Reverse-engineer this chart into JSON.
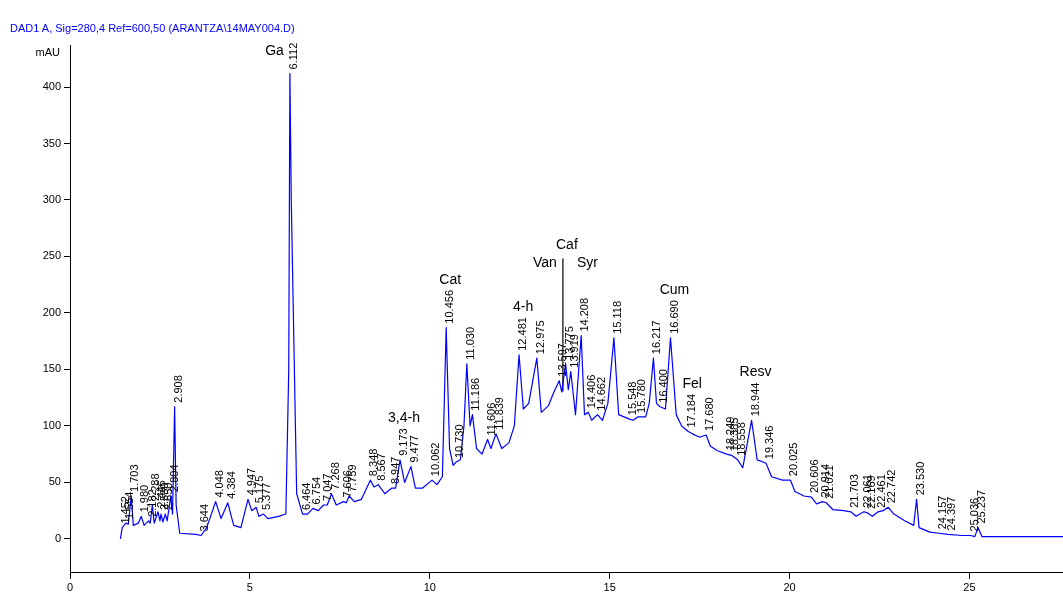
{
  "chart_data": {
    "type": "line",
    "title": "DAD1 A, Sig=280,4 Ref=600,50 (ARANTZA\\14MAY004.D)",
    "ylabel": "mAU",
    "xlim": [
      0,
      27.6
    ],
    "xticks": [
      0,
      5,
      10,
      15,
      20,
      25
    ],
    "ylim": [
      -30,
      437
    ],
    "yticks": [
      0,
      50,
      100,
      150,
      200,
      250,
      300,
      350,
      400
    ],
    "grid": false,
    "legend": false,
    "marker": "none",
    "line_style": "solid",
    "annotations": [
      {
        "text": "1.452",
        "x": 1.452,
        "y": 10
      },
      {
        "text": "1.554",
        "x": 1.554,
        "y": 14
      },
      {
        "text": "1.703",
        "x": 1.703,
        "y": 38
      },
      {
        "text": "1.980",
        "x": 1.98,
        "y": 20
      },
      {
        "text": "2.182",
        "x": 2.182,
        "y": 16
      },
      {
        "text": "2.288",
        "x": 2.288,
        "y": 30
      },
      {
        "text": "2.446",
        "x": 2.446,
        "y": 24
      },
      {
        "text": "2.530",
        "x": 2.53,
        "y": 22
      },
      {
        "text": "2.650",
        "x": 2.65,
        "y": 22
      },
      {
        "text": "2.804",
        "x": 2.804,
        "y": 38
      },
      {
        "text": "2.908",
        "x": 2.908,
        "y": 117
      },
      {
        "text": "3.644",
        "x": 3.644,
        "y": 3
      },
      {
        "text": "4.048",
        "x": 4.048,
        "y": 33
      },
      {
        "text": "4.384",
        "x": 4.384,
        "y": 32
      },
      {
        "text": "4.947",
        "x": 4.947,
        "y": 35
      },
      {
        "text": "5.175",
        "x": 5.175,
        "y": 28
      },
      {
        "text": "5.377",
        "x": 5.377,
        "y": 22
      },
      {
        "text": "6.112",
        "x": 6.112,
        "y": 412
      },
      {
        "text": "6.464",
        "x": 6.464,
        "y": 22
      },
      {
        "text": "6.754",
        "x": 6.754,
        "y": 27
      },
      {
        "text": "7.047",
        "x": 7.047,
        "y": 30
      },
      {
        "text": "7.268",
        "x": 7.268,
        "y": 40
      },
      {
        "text": "7.606",
        "x": 7.606,
        "y": 33
      },
      {
        "text": "7.759",
        "x": 7.759,
        "y": 38
      },
      {
        "text": "8.348",
        "x": 8.348,
        "y": 52
      },
      {
        "text": "8.567",
        "x": 8.567,
        "y": 48
      },
      {
        "text": "8.947",
        "x": 8.947,
        "y": 45
      },
      {
        "text": "9.173",
        "x": 9.173,
        "y": 70
      },
      {
        "text": "9.477",
        "x": 9.477,
        "y": 64
      },
      {
        "text": "10.062",
        "x": 10.062,
        "y": 52
      },
      {
        "text": "10.456",
        "x": 10.456,
        "y": 187
      },
      {
        "text": "10.730",
        "x": 10.73,
        "y": 68
      },
      {
        "text": "11.030",
        "x": 11.03,
        "y": 155
      },
      {
        "text": "11.186",
        "x": 11.186,
        "y": 110
      },
      {
        "text": "11.606",
        "x": 11.606,
        "y": 88
      },
      {
        "text": "11.839",
        "x": 11.839,
        "y": 93
      },
      {
        "text": "12.481",
        "x": 12.481,
        "y": 163
      },
      {
        "text": "12.975",
        "x": 12.975,
        "y": 160
      },
      {
        "text": "13.597",
        "x": 13.597,
        "y": 140
      },
      {
        "text": "13.775",
        "x": 13.775,
        "y": 155
      },
      {
        "text": "13.919",
        "x": 13.919,
        "y": 148
      },
      {
        "text": "14.208",
        "x": 14.208,
        "y": 180
      },
      {
        "text": "14.406",
        "x": 14.406,
        "y": 112
      },
      {
        "text": "14.662",
        "x": 14.662,
        "y": 110
      },
      {
        "text": "15.118",
        "x": 15.118,
        "y": 178
      },
      {
        "text": "15.548",
        "x": 15.548,
        "y": 106
      },
      {
        "text": "15.780",
        "x": 15.78,
        "y": 108
      },
      {
        "text": "16.217",
        "x": 16.217,
        "y": 160
      },
      {
        "text": "16.400",
        "x": 16.4,
        "y": 117
      },
      {
        "text": "16.690",
        "x": 16.69,
        "y": 178
      },
      {
        "text": "17.184",
        "x": 17.184,
        "y": 95
      },
      {
        "text": "17.680",
        "x": 17.68,
        "y": 92
      },
      {
        "text": "18.249",
        "x": 18.249,
        "y": 75
      },
      {
        "text": "18.385",
        "x": 18.385,
        "y": 74
      },
      {
        "text": "18.558",
        "x": 18.558,
        "y": 70
      },
      {
        "text": "18.944",
        "x": 18.944,
        "y": 105
      },
      {
        "text": "19.346",
        "x": 19.346,
        "y": 67
      },
      {
        "text": "20.025",
        "x": 20.025,
        "y": 52
      },
      {
        "text": "20.606",
        "x": 20.606,
        "y": 37
      },
      {
        "text": "20.914",
        "x": 20.914,
        "y": 33
      },
      {
        "text": "21.021",
        "x": 21.021,
        "y": 32
      },
      {
        "text": "21.703",
        "x": 21.703,
        "y": 24
      },
      {
        "text": "22.061",
        "x": 22.061,
        "y": 24
      },
      {
        "text": "22.169",
        "x": 22.169,
        "y": 23
      },
      {
        "text": "22.461",
        "x": 22.461,
        "y": 24
      },
      {
        "text": "22.742",
        "x": 22.742,
        "y": 28
      },
      {
        "text": "23.530",
        "x": 23.53,
        "y": 35
      },
      {
        "text": "24.157",
        "x": 24.157,
        "y": 5
      },
      {
        "text": "24.397",
        "x": 24.397,
        "y": 4
      },
      {
        "text": "25.036",
        "x": 25.036,
        "y": 3
      },
      {
        "text": "25.237",
        "x": 25.237,
        "y": 10
      },
      {
        "text": "Ga",
        "x": 6.112,
        "y": 412
      },
      {
        "text": "3,4-h",
        "x": 9.173,
        "y": 70
      },
      {
        "text": "Cat",
        "x": 10.456,
        "y": 187
      },
      {
        "text": "4-h",
        "x": 12.481,
        "y": 163
      },
      {
        "text": "Caf",
        "x": 13.7,
        "y": 248
      },
      {
        "text": "Van",
        "x": 13.7,
        "y": 248
      },
      {
        "text": "Syr",
        "x": 13.7,
        "y": 248
      },
      {
        "text": "Cum",
        "x": 16.69,
        "y": 178
      },
      {
        "text": "Fel",
        "x": 17.184,
        "y": 95
      },
      {
        "text": "Resv",
        "x": 18.944,
        "y": 105
      }
    ],
    "series": [
      {
        "color": "#0000ff",
        "x": [
          1.4,
          1.452,
          1.5,
          1.554,
          1.62,
          1.703,
          1.76,
          1.9,
          1.98,
          2.06,
          2.182,
          2.23,
          2.288,
          2.34,
          2.446,
          2.5,
          2.53,
          2.58,
          2.65,
          2.7,
          2.804,
          2.85,
          2.908,
          2.95,
          3.05,
          3.5,
          3.644,
          3.8,
          4.048,
          4.2,
          4.384,
          4.55,
          4.75,
          4.947,
          5.05,
          5.175,
          5.25,
          5.377,
          5.5,
          5.8,
          6.0,
          6.08,
          6.112,
          6.15,
          6.3,
          6.464,
          6.6,
          6.754,
          6.9,
          7.047,
          7.15,
          7.268,
          7.4,
          7.606,
          7.68,
          7.759,
          7.9,
          8.1,
          8.348,
          8.45,
          8.567,
          8.75,
          8.947,
          9.05,
          9.173,
          9.3,
          9.477,
          9.6,
          9.8,
          10.062,
          10.2,
          10.35,
          10.456,
          10.55,
          10.65,
          10.73,
          10.85,
          10.95,
          11.03,
          11.12,
          11.186,
          11.3,
          11.45,
          11.606,
          11.7,
          11.839,
          12.0,
          12.2,
          12.35,
          12.481,
          12.6,
          12.75,
          12.975,
          13.1,
          13.3,
          13.45,
          13.597,
          13.67,
          13.775,
          13.85,
          13.919,
          14.05,
          14.208,
          14.3,
          14.406,
          14.5,
          14.662,
          14.8,
          14.95,
          15.118,
          15.25,
          15.548,
          15.65,
          15.78,
          16.0,
          16.1,
          16.217,
          16.3,
          16.4,
          16.55,
          16.69,
          16.85,
          17.0,
          17.184,
          17.3,
          17.5,
          17.68,
          17.8,
          18.0,
          18.249,
          18.385,
          18.558,
          18.7,
          18.944,
          19.1,
          19.346,
          19.5,
          19.8,
          20.025,
          20.15,
          20.4,
          20.606,
          20.75,
          20.914,
          21.021,
          21.2,
          21.5,
          21.703,
          21.85,
          22.061,
          22.169,
          22.3,
          22.461,
          22.6,
          22.742,
          22.9,
          23.2,
          23.45,
          23.53,
          23.6,
          23.9,
          24.157,
          24.397,
          24.8,
          25.036,
          25.15,
          25.237,
          25.35,
          26,
          27.6
        ],
        "values": [
          0,
          10,
          12,
          14,
          13,
          38,
          12,
          14,
          20,
          12,
          16,
          14,
          30,
          14,
          24,
          16,
          22,
          15,
          22,
          16,
          38,
          22,
          117,
          30,
          5,
          4,
          3,
          10,
          33,
          18,
          32,
          12,
          10,
          35,
          25,
          28,
          20,
          22,
          18,
          20,
          22,
          150,
          412,
          300,
          40,
          22,
          22,
          27,
          25,
          30,
          30,
          40,
          30,
          33,
          32,
          38,
          33,
          35,
          52,
          46,
          48,
          40,
          45,
          45,
          70,
          50,
          64,
          45,
          45,
          52,
          48,
          55,
          187,
          80,
          65,
          68,
          70,
          100,
          155,
          100,
          110,
          80,
          75,
          88,
          80,
          93,
          80,
          85,
          100,
          163,
          115,
          120,
          160,
          112,
          118,
          130,
          140,
          130,
          155,
          132,
          148,
          110,
          180,
          110,
          112,
          105,
          110,
          105,
          120,
          178,
          110,
          106,
          105,
          108,
          108,
          120,
          160,
          120,
          117,
          115,
          178,
          110,
          100,
          95,
          93,
          90,
          92,
          82,
          78,
          75,
          74,
          70,
          63,
          105,
          70,
          67,
          55,
          52,
          52,
          42,
          38,
          37,
          31,
          33,
          32,
          26,
          25,
          24,
          20,
          24,
          23,
          20,
          24,
          25,
          28,
          22,
          16,
          12,
          35,
          10,
          6,
          5,
          4,
          3,
          3,
          2,
          10,
          2,
          2,
          2
        ]
      },
      {
        "color": "#000000",
        "x": [
          13.7,
          13.7
        ],
        "values": [
          248,
          131
        ]
      }
    ]
  }
}
